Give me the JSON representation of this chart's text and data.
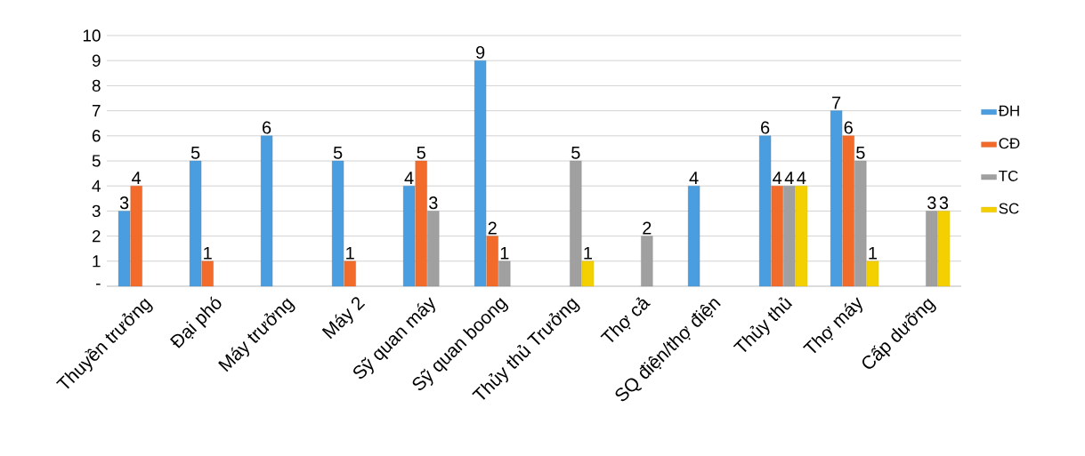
{
  "chart_data": {
    "type": "bar",
    "categories": [
      "Thuyền trưởng",
      "Đại phó",
      "Máy trưởng",
      "Máy 2",
      "Sỹ quan máy",
      "Sỹ quan boong",
      "Thủy thủ Trưởng",
      "Thợ cả",
      "SQ điện/thợ điện",
      "Thủy thủ",
      "Thợ máy",
      "Cấp dưỡng"
    ],
    "series": [
      {
        "name": "ĐH",
        "color": "#4a9ee0",
        "values": [
          3,
          5,
          6,
          5,
          4,
          9,
          null,
          null,
          4,
          6,
          7,
          null
        ]
      },
      {
        "name": "CĐ",
        "color": "#f26b2a",
        "values": [
          4,
          1,
          null,
          1,
          5,
          2,
          null,
          null,
          null,
          4,
          6,
          null
        ]
      },
      {
        "name": "TC",
        "color": "#a0a0a0",
        "values": [
          null,
          null,
          null,
          null,
          3,
          1,
          5,
          2,
          null,
          4,
          5,
          3
        ]
      },
      {
        "name": "SC",
        "color": "#f5d000",
        "values": [
          null,
          null,
          null,
          null,
          null,
          null,
          1,
          null,
          null,
          4,
          1,
          3
        ]
      }
    ],
    "ylim": [
      0,
      10
    ],
    "yticks": [
      {
        "value": 0,
        "label": "-"
      },
      1,
      2,
      3,
      4,
      5,
      6,
      7,
      8,
      9,
      10
    ],
    "grid": "y",
    "legend": "right",
    "data_labels": true
  }
}
